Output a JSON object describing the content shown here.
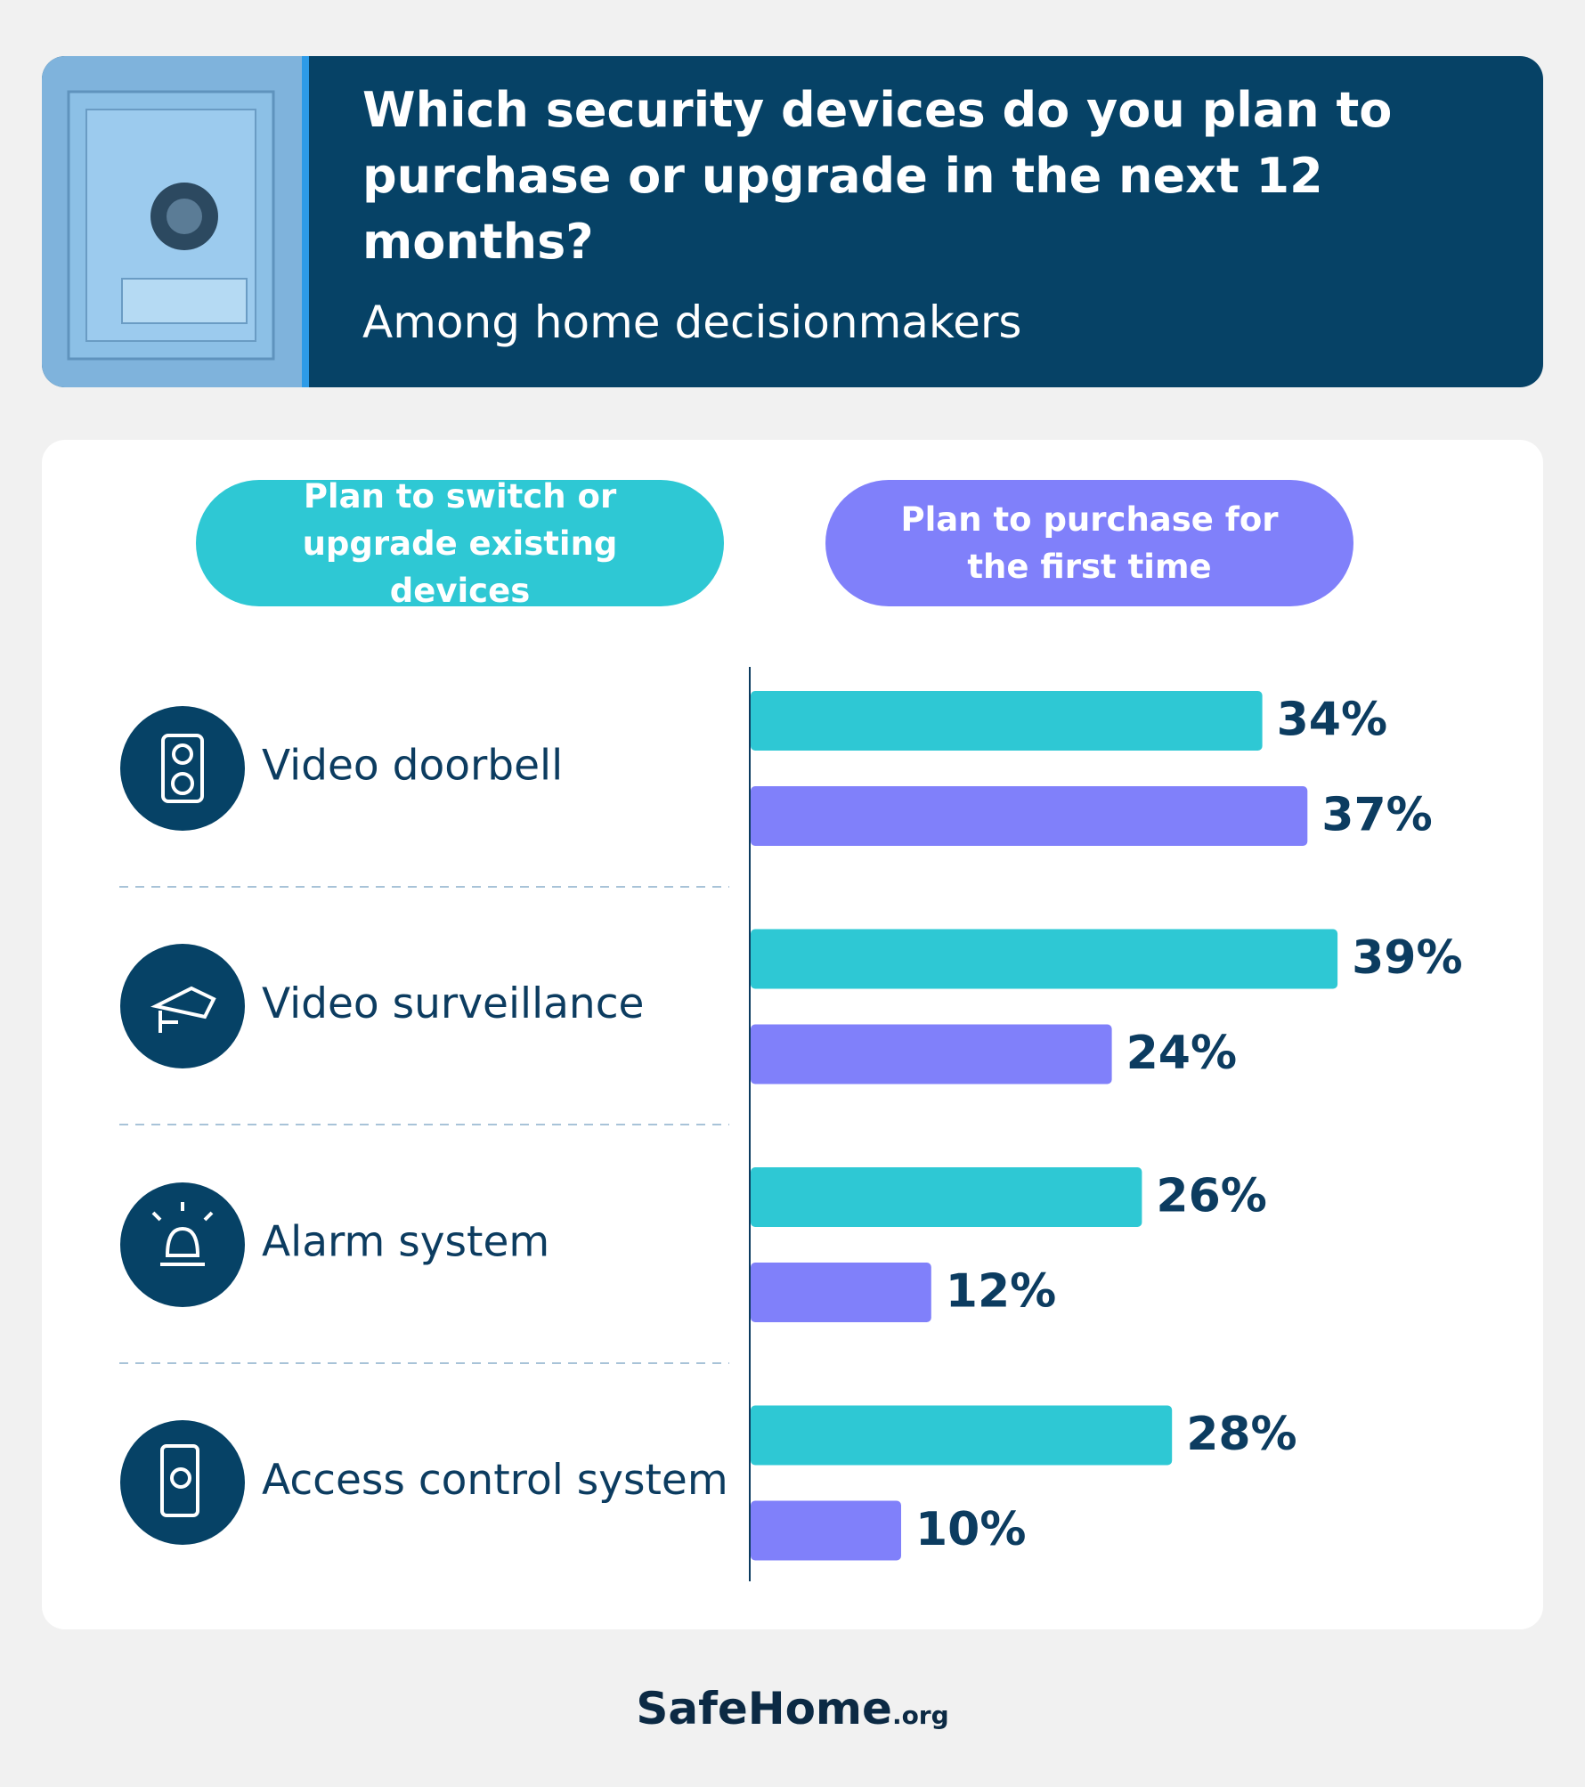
{
  "chart_data": {
    "type": "bar",
    "orientation": "horizontal",
    "title": "Which security devices do you plan to purchase or upgrade in the next 12 months?",
    "subtitle": "Among home decisionmakers",
    "categories": [
      "Video doorbell",
      "Video surveillance",
      "Alarm system",
      "Access control system"
    ],
    "series": [
      {
        "name": "Plan to switch or upgrade existing devices",
        "color": "#2ec8d4",
        "values": [
          34,
          39,
          26,
          28
        ],
        "value_labels": [
          "34%",
          "39%",
          "26%",
          "28%"
        ]
      },
      {
        "name": "Plan to purchase for the first time",
        "color": "#8080fa",
        "values": [
          37,
          24,
          12,
          10
        ],
        "value_labels": [
          "37%",
          "24%",
          "12%",
          "10%"
        ]
      }
    ]
  },
  "footer": {
    "brand": "SafeHome",
    "suffix": ".org"
  }
}
